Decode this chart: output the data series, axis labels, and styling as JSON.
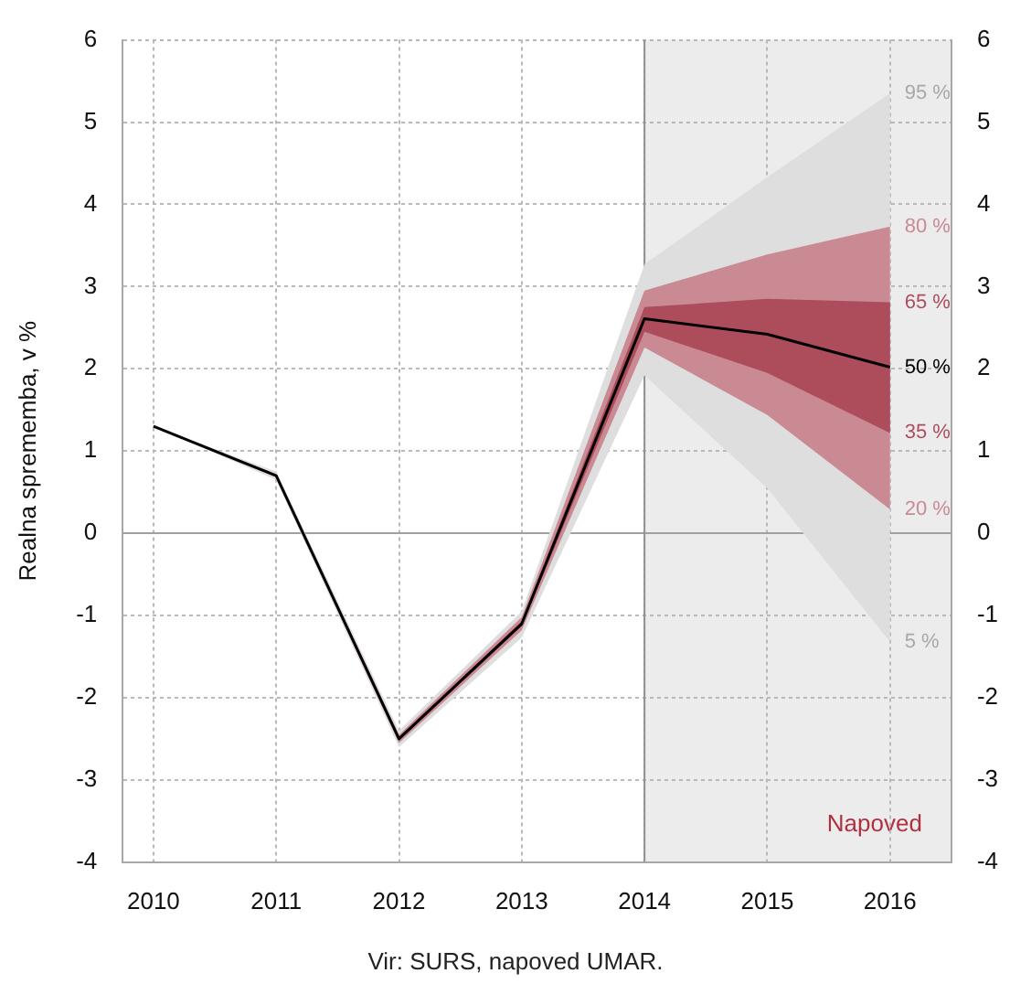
{
  "chart_data": {
    "type": "line",
    "ylabel": "Realna sprememba, v %",
    "x": [
      2010,
      2011,
      2012,
      2013,
      2014,
      2015,
      2016
    ],
    "xlim": [
      2009.75,
      2016.5
    ],
    "xticks": [
      2010,
      2011,
      2012,
      2013,
      2014,
      2015,
      2016
    ],
    "ylim": [
      -4,
      6
    ],
    "yticks": [
      -4,
      -3,
      -2,
      -1,
      0,
      1,
      2,
      3,
      4,
      5,
      6
    ],
    "y2lim": [
      -4,
      6
    ],
    "y2ticks": [
      -4,
      -3,
      -2,
      -1,
      0,
      1,
      2,
      3,
      4,
      5,
      6
    ],
    "series": [
      {
        "color": "#dedede",
        "values": [
          null,
          null,
          null,
          null,
          null,
          null,
          null
        ],
        "upper": [
          1.3,
          0.75,
          -2.4,
          -0.95,
          3.27,
          4.33,
          5.35
        ],
        "lower": [
          1.3,
          0.65,
          -2.6,
          -1.27,
          1.92,
          0.55,
          -1.32
        ]
      },
      {
        "color": "#c98a94",
        "values": [
          null,
          null,
          null,
          null,
          null,
          null,
          null
        ],
        "upper": [
          1.3,
          0.72,
          -2.45,
          -1.02,
          2.95,
          3.39,
          3.73
        ],
        "lower": [
          1.3,
          0.68,
          -2.55,
          -1.18,
          2.26,
          1.44,
          0.29
        ]
      },
      {
        "color": "#ad4d5c",
        "values": [
          null,
          null,
          null,
          null,
          null,
          null,
          null
        ],
        "upper": [
          1.3,
          0.71,
          -2.48,
          -1.07,
          2.75,
          2.85,
          2.81
        ],
        "lower": [
          1.3,
          0.69,
          -2.52,
          -1.13,
          2.45,
          1.95,
          1.22
        ]
      },
      {
        "name": "50 %",
        "color": "#000000",
        "values": [
          1.3,
          0.7,
          -2.5,
          -1.1,
          2.61,
          2.42,
          2.02
        ]
      }
    ],
    "bands": [
      {
        "axis": "x",
        "from": 2014,
        "to": 2016.5,
        "label": "Napoved",
        "color": "#ececec"
      }
    ],
    "ref_lines": [
      {
        "axis": "y",
        "value": 0,
        "color": "#a0a0a0"
      },
      {
        "axis": "x",
        "value": 2014,
        "color": "#909090"
      }
    ],
    "grid": true,
    "legend": false,
    "annotations": [
      "95 %",
      "80 %",
      "65 %",
      "35 %",
      "20 %",
      "5 %",
      "Vir: SURS, napoved UMAR."
    ]
  }
}
